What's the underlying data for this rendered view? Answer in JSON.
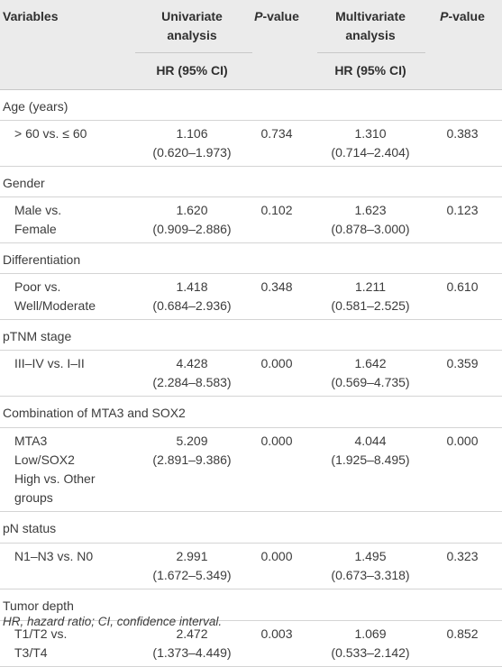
{
  "header": {
    "variables": "Variables",
    "univariate_l1": "Univariate",
    "univariate_l2": "analysis",
    "multivariate_l1": "Multivariate",
    "multivariate_l2": "analysis",
    "p_italic": "P",
    "p_rest": "-value",
    "hr_ci": "HR (95% CI)"
  },
  "groups": [
    {
      "title": "Age (years)",
      "rows": [
        {
          "label": [
            "> 60 vs. ≤ 60"
          ],
          "uni_hr": "1.106",
          "uni_ci": "(0.620–1.973)",
          "uni_p": "0.734",
          "multi_hr": "1.310",
          "multi_ci": "(0.714–2.404)",
          "multi_p": "0.383"
        }
      ]
    },
    {
      "title": "Gender",
      "rows": [
        {
          "label": [
            "Male vs.",
            "Female"
          ],
          "uni_hr": "1.620",
          "uni_ci": "(0.909–2.886)",
          "uni_p": "0.102",
          "multi_hr": "1.623",
          "multi_ci": "(0.878–3.000)",
          "multi_p": "0.123"
        }
      ]
    },
    {
      "title": "Differentiation",
      "rows": [
        {
          "label": [
            "Poor vs.",
            "Well/Moderate"
          ],
          "uni_hr": "1.418",
          "uni_ci": "(0.684–2.936)",
          "uni_p": "0.348",
          "multi_hr": "1.211",
          "multi_ci": "(0.581–2.525)",
          "multi_p": "0.610"
        }
      ]
    },
    {
      "title": "pTNM stage",
      "rows": [
        {
          "label": [
            "III–IV vs. I–II"
          ],
          "uni_hr": "4.428",
          "uni_ci": "(2.284–8.583)",
          "uni_p": "0.000",
          "multi_hr": "1.642",
          "multi_ci": "(0.569–4.735)",
          "multi_p": "0.359"
        }
      ]
    },
    {
      "title": "Combination of MTA3 and SOX2",
      "rows": [
        {
          "label": [
            "MTA3",
            "Low/SOX2",
            "High vs. Other",
            "groups"
          ],
          "uni_hr": "5.209",
          "uni_ci": "(2.891–9.386)",
          "uni_p": "0.000",
          "multi_hr": "4.044",
          "multi_ci": "(1.925–8.495)",
          "multi_p": "0.000"
        }
      ]
    },
    {
      "title": "pN status",
      "rows": [
        {
          "label": [
            "N1–N3 vs. N0"
          ],
          "uni_hr": "2.991",
          "uni_ci": "(1.672–5.349)",
          "uni_p": "0.000",
          "multi_hr": "1.495",
          "multi_ci": "(0.673–3.318)",
          "multi_p": "0.323"
        }
      ]
    },
    {
      "title": "Tumor depth",
      "rows": [
        {
          "label": [
            "T1/T2 vs.",
            "T3/T4"
          ],
          "uni_hr": "2.472",
          "uni_ci": "(1.373–4.449)",
          "uni_p": "0.003",
          "multi_hr": "1.069",
          "multi_ci": "(0.533–2.142)",
          "multi_p": "0.852"
        }
      ]
    }
  ],
  "footnote": "HR, hazard ratio; CI, confidence interval."
}
